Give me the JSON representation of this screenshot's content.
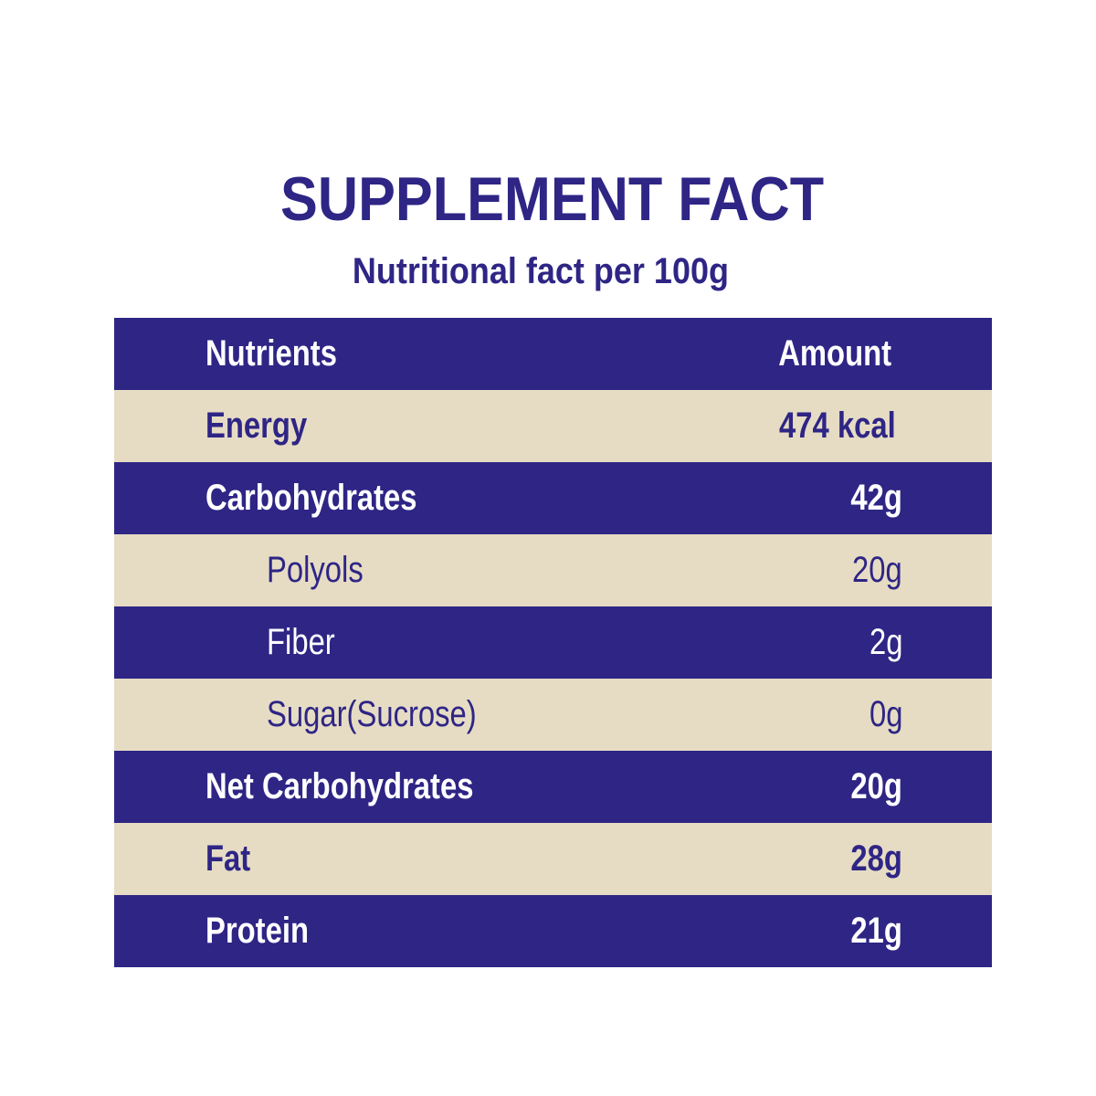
{
  "title": "SUPPLEMENT FACT",
  "subtitle": "Nutritional fact per 100g",
  "colors": {
    "primary": "#2e2585",
    "alternate": "#e6dcc4"
  },
  "table": {
    "headers": {
      "nutrient": "Nutrients",
      "amount": "Amount"
    },
    "rows": [
      {
        "nutrient": "Energy",
        "amount": "474 kcal"
      },
      {
        "nutrient": "Carbohydrates",
        "amount": "42g"
      },
      {
        "nutrient": "Polyols",
        "amount": "20g"
      },
      {
        "nutrient": "Fiber",
        "amount": "2g"
      },
      {
        "nutrient": "Sugar(Sucrose)",
        "amount": "0g"
      },
      {
        "nutrient": "Net Carbohydrates",
        "amount": "20g"
      },
      {
        "nutrient": "Fat",
        "amount": "28g"
      },
      {
        "nutrient": "Protein",
        "amount": "21g"
      }
    ]
  }
}
